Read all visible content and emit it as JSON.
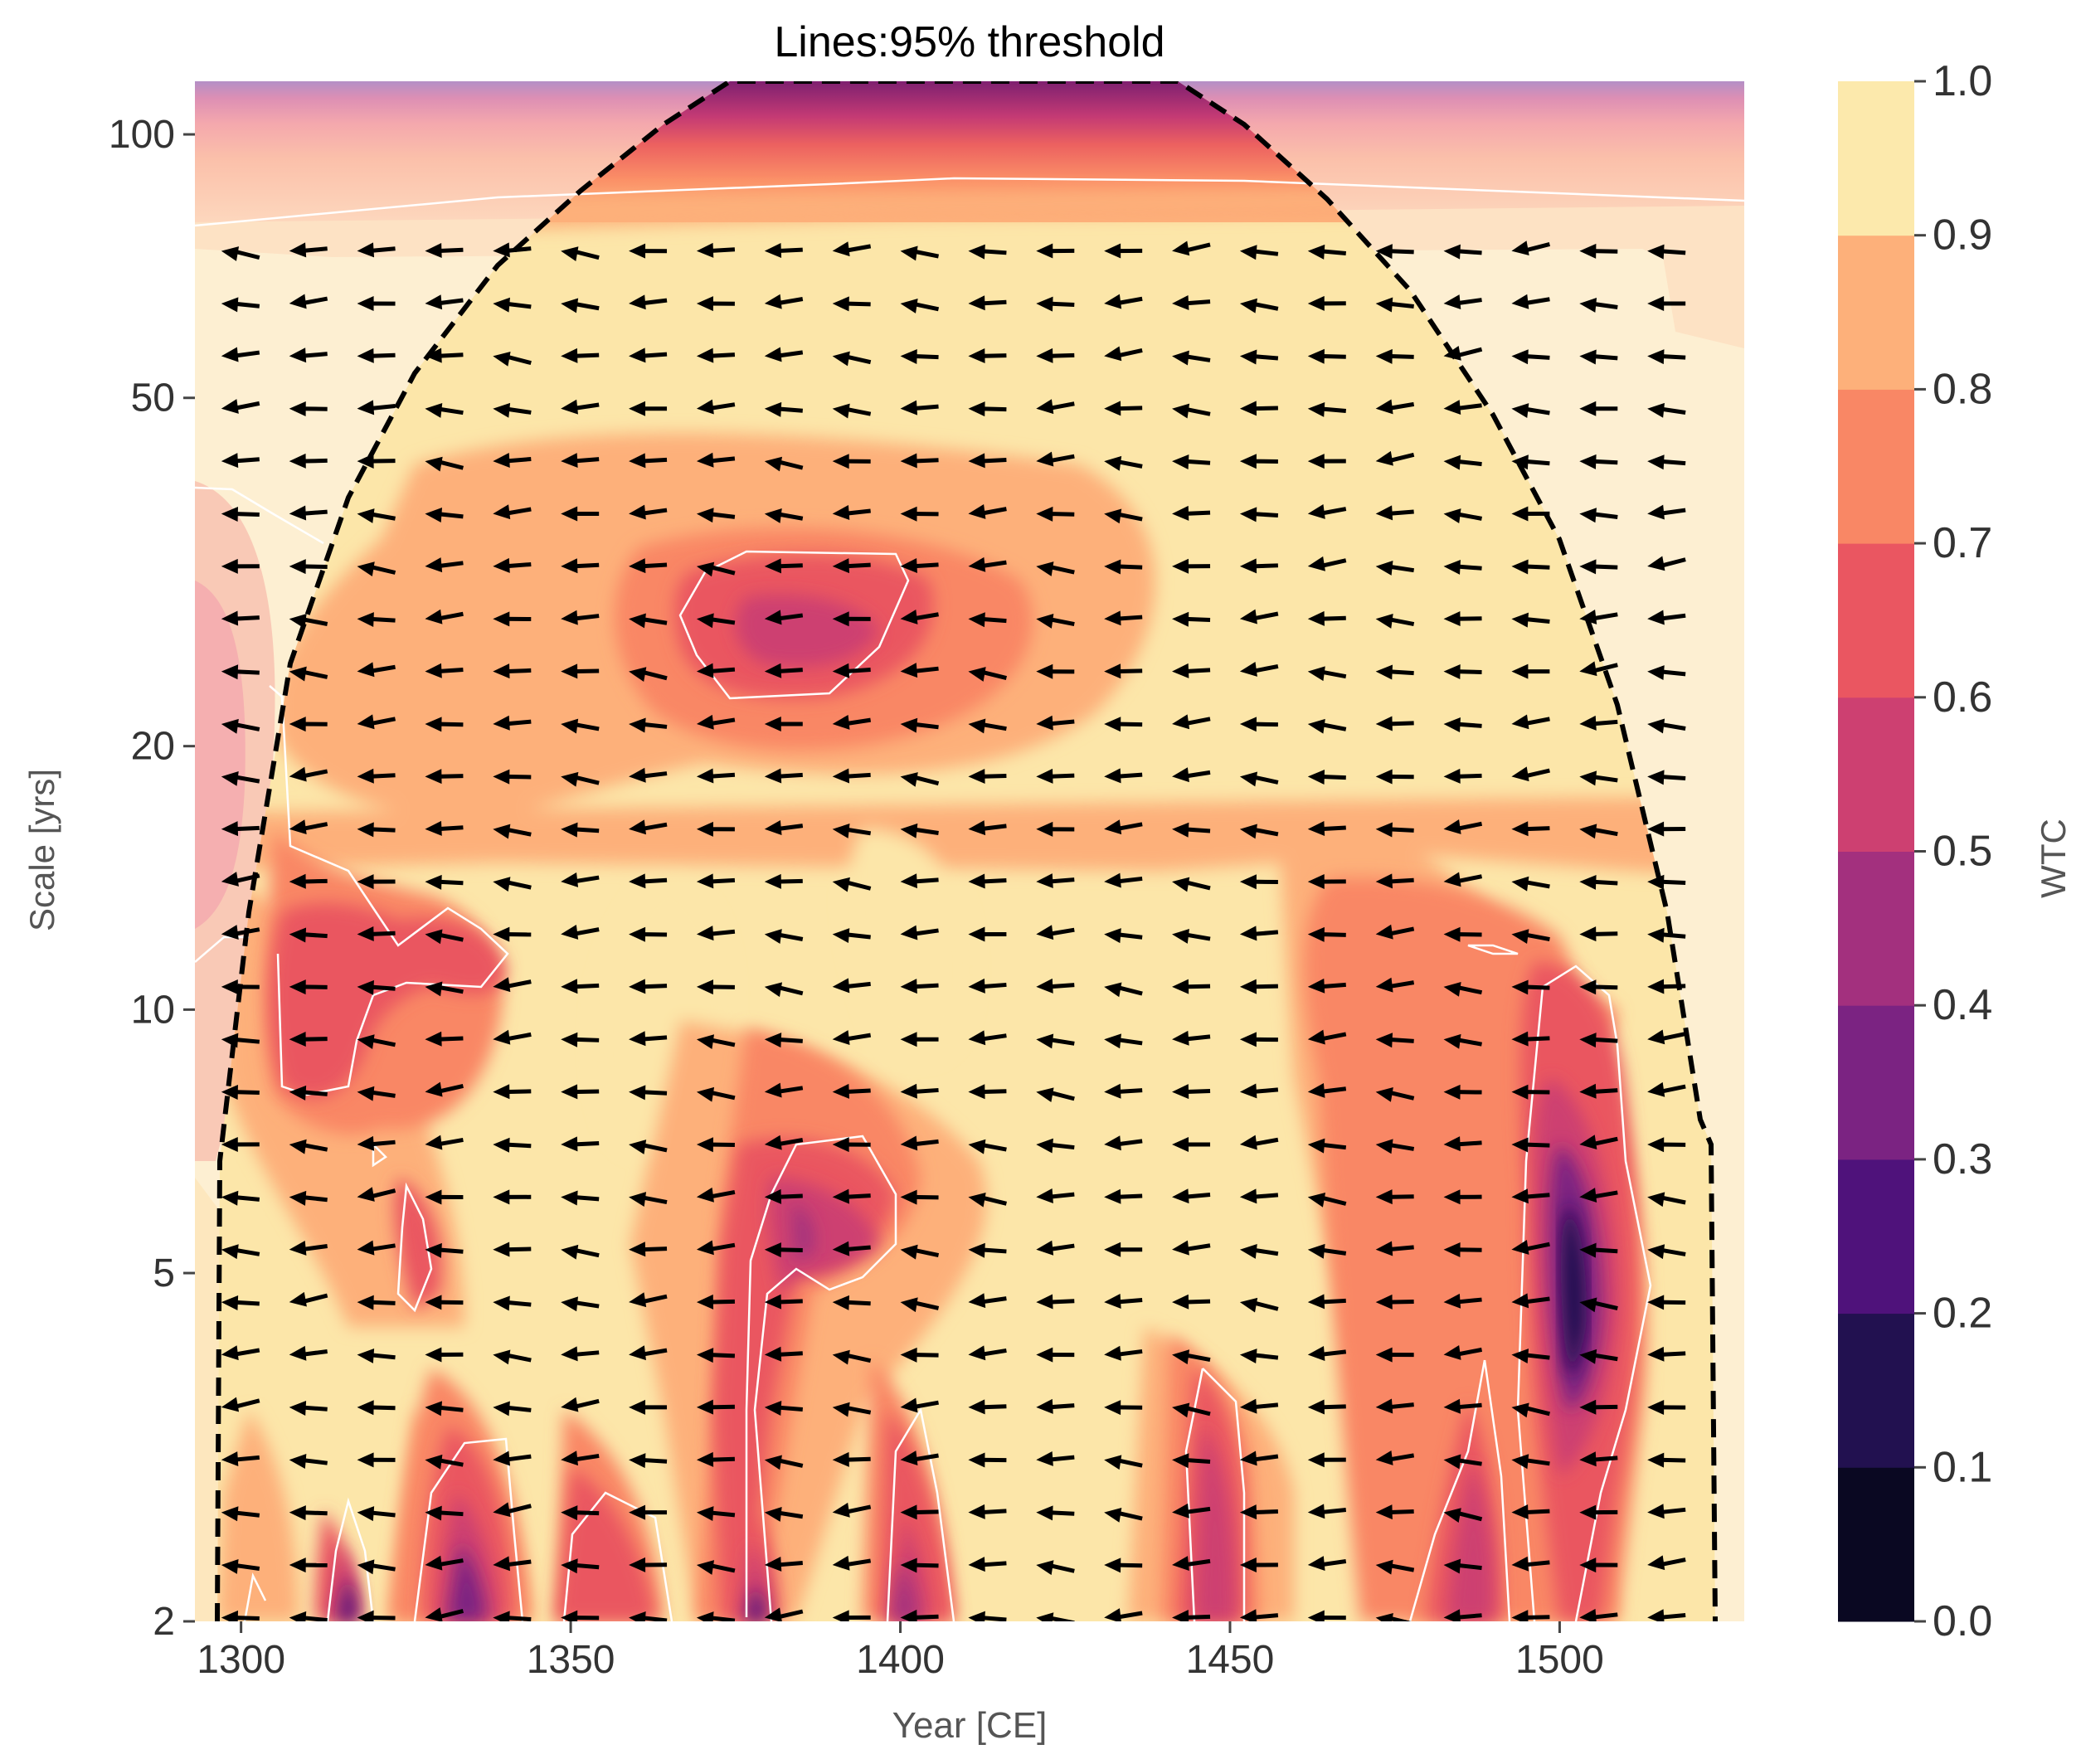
{
  "chart_data": {
    "type": "heatmap",
    "subtype": "wavelet-coherence",
    "title": "Lines:95% threshold",
    "xlabel": "Year [CE]",
    "ylabel": "Scale [yrs]",
    "colorbar_label": "WTC",
    "xlim": [
      1293,
      1528
    ],
    "ylim": [
      2,
      115
    ],
    "yscale": "log",
    "xticks": [
      1300,
      1350,
      1400,
      1450,
      1500
    ],
    "xtick_labels": [
      "1300",
      "1350",
      "1400",
      "1450",
      "1500"
    ],
    "yticks": [
      2,
      5,
      10,
      20,
      50,
      100
    ],
    "ytick_labels": [
      "2",
      "5",
      "10",
      "20",
      "50",
      "100"
    ],
    "colorbar_ticks": [
      "0.0",
      "0.1",
      "0.2",
      "0.3",
      "0.4",
      "0.5",
      "0.6",
      "0.7",
      "0.8",
      "0.9",
      "1.0"
    ],
    "levels": [
      0,
      0.1,
      0.2,
      0.3,
      0.4,
      0.5,
      0.6,
      0.7,
      0.8,
      0.9,
      1.0
    ],
    "colormap": [
      "#0a0822",
      "#221150",
      "#4f127b",
      "#7b2382",
      "#a3307e",
      "#cd4071",
      "#ea5661",
      "#f98765",
      "#fdb07a",
      "#fce9ac"
    ],
    "grid": false,
    "cone_of_influence": {
      "style": "dashed",
      "color": "#000000"
    },
    "significance_contour": {
      "level": 0.95,
      "color": "#ffffff"
    },
    "phase_arrows": {
      "direction": "left (anti-phase)",
      "x_start": 1297,
      "x_end": 1522,
      "x_step": 10.3
    },
    "regions": [
      {
        "year": 1385,
        "scale": 28,
        "wtc": 0.55,
        "label": "low coherence island"
      },
      {
        "year": 1503,
        "scale": 4.8,
        "wtc": 0.15,
        "label": "lowest coherence"
      },
      {
        "year": 1386,
        "scale": 6.0,
        "wtc": 0.45
      },
      {
        "year": 1317,
        "scale": 11,
        "wtc": 0.65
      },
      {
        "year": 1336,
        "scale": 2.5,
        "wtc": 0.3
      },
      {
        "year": 1379,
        "scale": 2.2,
        "wtc": 0.3
      },
      {
        "year": 1400,
        "scale": 2.4,
        "wtc": 0.45
      },
      {
        "year": 1447,
        "scale": 2.8,
        "wtc": 0.5
      },
      {
        "year": 1487,
        "scale": 2.4,
        "wtc": 0.5
      },
      {
        "year": 1317,
        "scale": 2.1,
        "wtc": 0.25
      }
    ]
  }
}
